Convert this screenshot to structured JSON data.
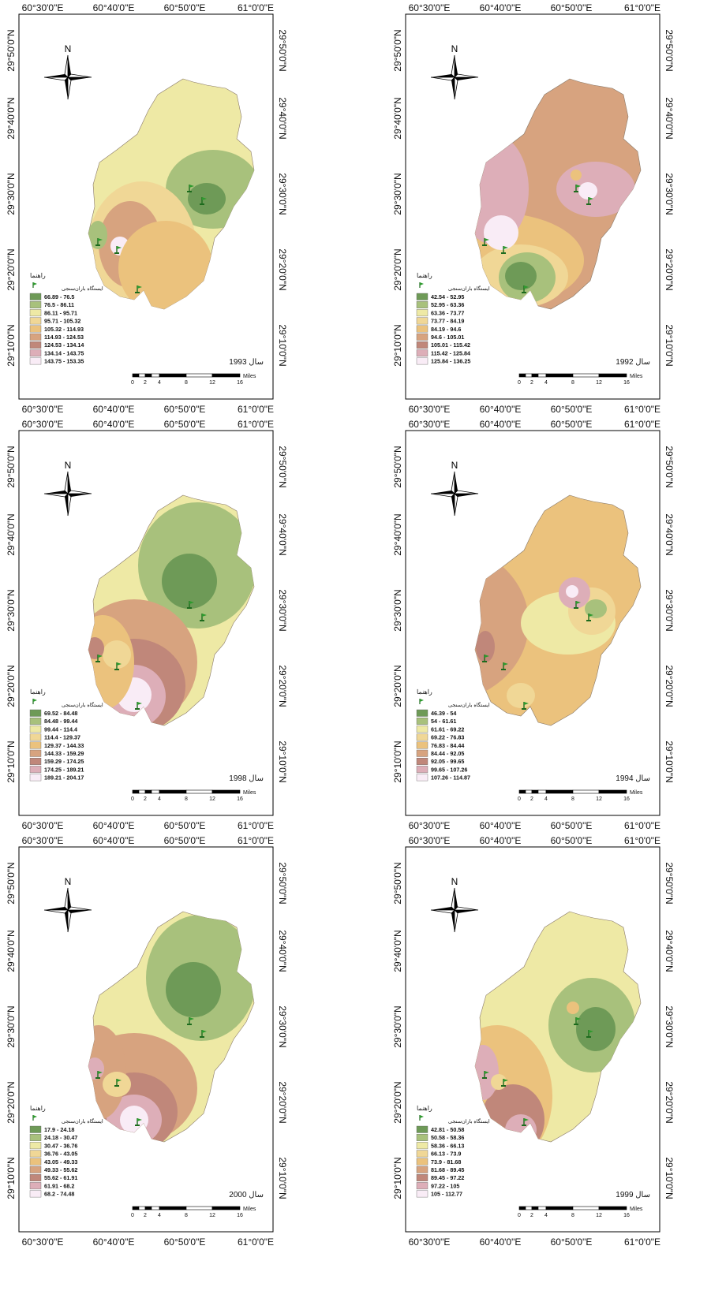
{
  "common": {
    "north_label": "N",
    "legend_title": "راهنما",
    "station_label": "ایستگاه باران‌سنجی",
    "top_ticks": [
      "60°30'0\"E",
      "60°40'0\"E",
      "60°50'0\"E",
      "61°0'0\"E"
    ],
    "side_ticks": [
      "29°50'0\"N",
      "29°40'0\"N",
      "29°30'0\"N",
      "29°20'0\"N",
      "29°10'0\"N"
    ],
    "scale_labels": [
      "0",
      "2",
      "4",
      "8",
      "12",
      "16"
    ],
    "scale_unit": "Miles",
    "colors": [
      "#6e9a57",
      "#a8c17c",
      "#eee9a5",
      "#f0d796",
      "#ebc27d",
      "#d7a37f",
      "#c0877a",
      "#ddaeb8",
      "#f9ecf6"
    ]
  },
  "maps": [
    {
      "year_label": "سال 1993",
      "ranges": [
        "66.89 - 76.5",
        "76.5 - 86.11",
        "86.11 - 95.71",
        "95.71 - 105.32",
        "105.32 - 114.93",
        "114.93 - 124.53",
        "124.53 - 134.14",
        "134.14 - 143.75",
        "143.75 - 153.35"
      ]
    },
    {
      "year_label": "سال 1992",
      "ranges": [
        "42.54 - 52.95",
        "52.95 - 63.36",
        "63.36 - 73.77",
        "73.77 - 84.19",
        "84.19 - 94.6",
        "94.6 - 105.01",
        "105.01 - 115.42",
        "115.42 - 125.84",
        "125.84 - 136.25"
      ]
    },
    {
      "year_label": "سال 1998",
      "ranges": [
        "69.52 - 84.48",
        "84.48 - 99.44",
        "99.44 - 114.4",
        "114.4 - 129.37",
        "129.37 - 144.33",
        "144.33 - 159.29",
        "159.29 - 174.25",
        "174.25 - 189.21",
        "189.21 - 204.17"
      ]
    },
    {
      "year_label": "سال 1994",
      "ranges": [
        "46.39 - 54",
        "54 - 61.61",
        "61.61 - 69.22",
        "69.22 - 76.83",
        "76.83 - 84.44",
        "84.44 - 92.05",
        "92.05 - 99.65",
        "99.65 - 107.26",
        "107.26 - 114.87"
      ]
    },
    {
      "year_label": "سال 2000",
      "ranges": [
        "17.9 - 24.18",
        "24.18 - 30.47",
        "30.47 - 36.76",
        "36.76 - 43.05",
        "43.05 - 49.33",
        "49.33 - 55.62",
        "55.62 - 61.91",
        "61.91 - 68.2",
        "68.2 - 74.48"
      ]
    },
    {
      "year_label": "سال 1999",
      "ranges": [
        "42.81 - 50.58",
        "50.58 - 58.36",
        "58.36 - 66.13",
        "66.13 - 73.9",
        "73.9 - 81.68",
        "81.68 - 89.45",
        "89.45 - 97.22",
        "97.22 - 105",
        "105 - 112.77"
      ]
    }
  ]
}
